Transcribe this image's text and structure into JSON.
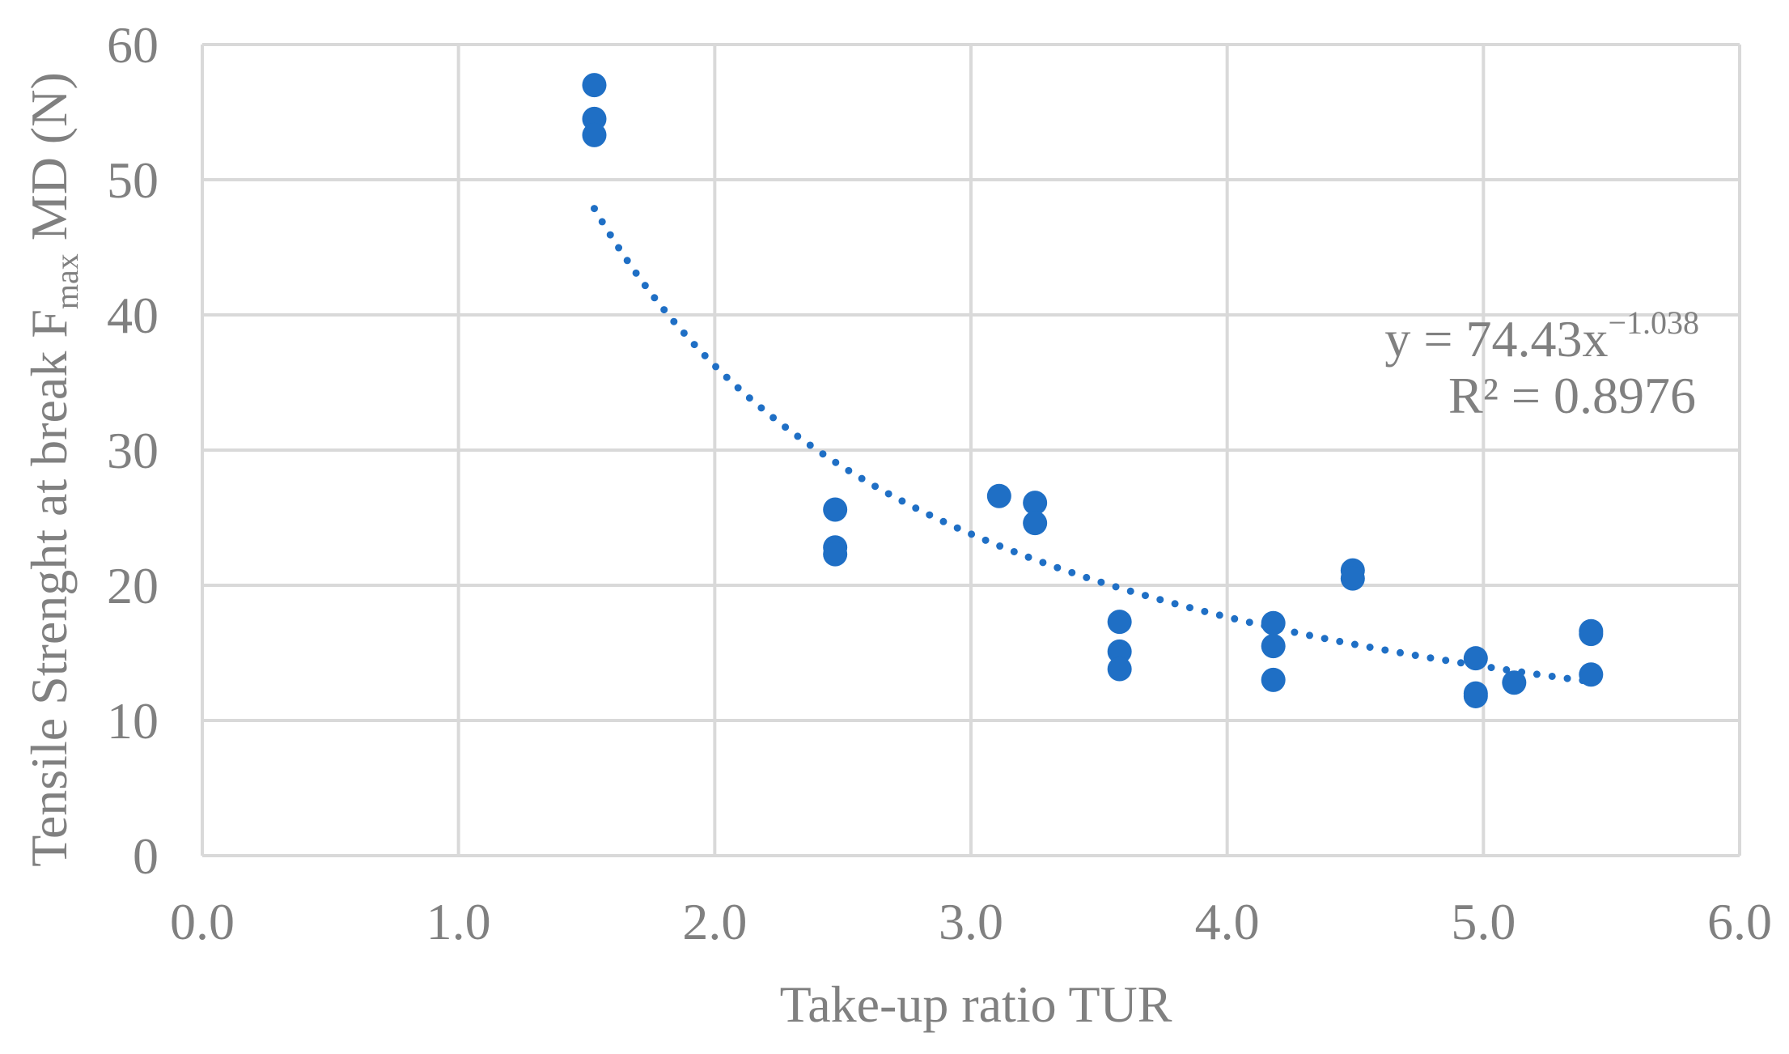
{
  "chart_data": {
    "type": "scatter",
    "xlabel": "Take-up ratio TUR",
    "ylabel": {
      "before_sub": "Tensile Strenght at break F",
      "sub": "max",
      "after_sub": " MD (N)"
    },
    "xlim": [
      0,
      6
    ],
    "ylim": [
      0,
      60
    ],
    "x_ticks": [
      "0.0",
      "1.0",
      "2.0",
      "3.0",
      "4.0",
      "5.0",
      "6.0"
    ],
    "y_ticks": [
      "0",
      "10",
      "20",
      "30",
      "40",
      "50",
      "60"
    ],
    "grid": true,
    "legend": "none",
    "colors": {
      "points": "#1f6fc5",
      "trendline": "#1f6fc5",
      "grid": "#d9d9d9",
      "text": "#808080"
    },
    "series": [
      {
        "points": [
          {
            "x": 1.53,
            "y": 57.0
          },
          {
            "x": 1.53,
            "y": 54.5
          },
          {
            "x": 1.53,
            "y": 53.3
          },
          {
            "x": 2.47,
            "y": 25.6
          },
          {
            "x": 2.47,
            "y": 22.8
          },
          {
            "x": 2.47,
            "y": 22.3
          },
          {
            "x": 3.11,
            "y": 26.6
          },
          {
            "x": 3.25,
            "y": 26.1
          },
          {
            "x": 3.25,
            "y": 24.6
          },
          {
            "x": 3.58,
            "y": 17.3
          },
          {
            "x": 3.58,
            "y": 15.1
          },
          {
            "x": 3.58,
            "y": 13.8
          },
          {
            "x": 4.18,
            "y": 17.2
          },
          {
            "x": 4.18,
            "y": 15.5
          },
          {
            "x": 4.18,
            "y": 13.0
          },
          {
            "x": 4.49,
            "y": 21.1
          },
          {
            "x": 4.49,
            "y": 20.5
          },
          {
            "x": 4.97,
            "y": 14.6
          },
          {
            "x": 4.97,
            "y": 12.0
          },
          {
            "x": 4.97,
            "y": 11.8
          },
          {
            "x": 5.12,
            "y": 12.8
          },
          {
            "x": 5.42,
            "y": 16.6
          },
          {
            "x": 5.42,
            "y": 16.4
          },
          {
            "x": 5.42,
            "y": 13.4
          }
        ]
      }
    ],
    "trendline": {
      "type": "power",
      "coefficient": 74.43,
      "exponent": -1.038,
      "x_range": [
        1.53,
        5.42
      ],
      "style": "dotted",
      "equation": {
        "base": "y = 74.43x",
        "exponent_text": "−1.038"
      },
      "r_squared": "R² = 0.8976"
    }
  }
}
